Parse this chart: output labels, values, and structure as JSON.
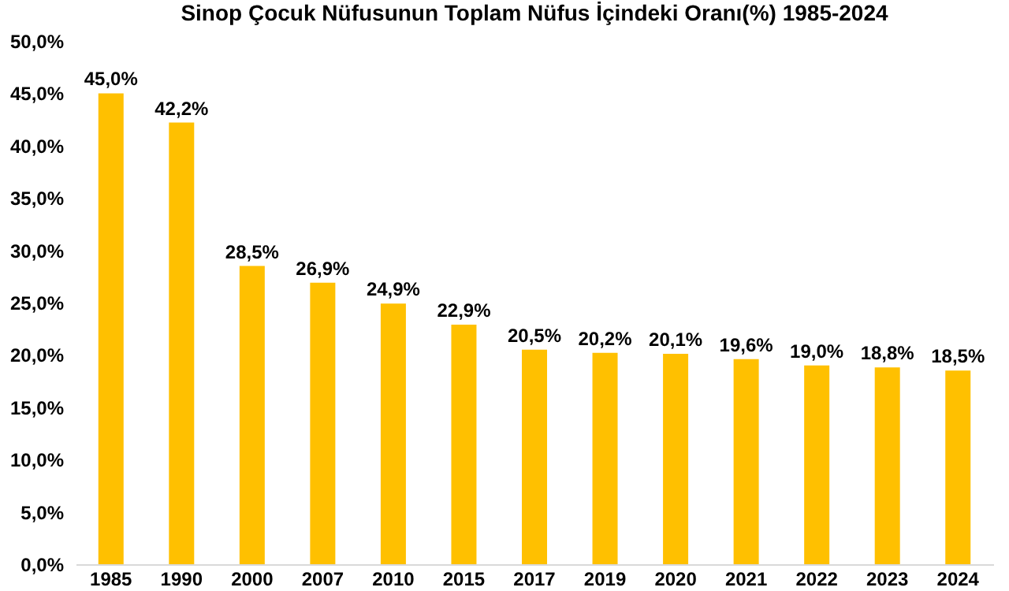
{
  "chart_data": {
    "type": "bar",
    "title": "Sinop Çocuk Nüfusunun Toplam Nüfus İçindeki Oranı(%) 1985-2024",
    "categories": [
      "1985",
      "1990",
      "2000",
      "2007",
      "2010",
      "2015",
      "2017",
      "2019",
      "2020",
      "2021",
      "2022",
      "2023",
      "2024"
    ],
    "values": [
      45.0,
      42.2,
      28.5,
      26.9,
      24.9,
      22.9,
      20.5,
      20.2,
      20.1,
      19.6,
      19.0,
      18.8,
      18.5
    ],
    "value_labels": [
      "45,0%",
      "42,2%",
      "28,5%",
      "26,9%",
      "24,9%",
      "22,9%",
      "20,5%",
      "20,2%",
      "20,1%",
      "19,6%",
      "19,0%",
      "18,8%",
      "18,5%"
    ],
    "color": "#ffc000",
    "ylim": [
      0,
      50
    ],
    "yticks": [
      {
        "value": 0,
        "label": "0,0%"
      },
      {
        "value": 5,
        "label": "5,0%"
      },
      {
        "value": 10,
        "label": "10,0%"
      },
      {
        "value": 15,
        "label": "15,0%"
      },
      {
        "value": 20,
        "label": "20,0%"
      },
      {
        "value": 25,
        "label": "25,0%"
      },
      {
        "value": 30,
        "label": "30,0%"
      },
      {
        "value": 35,
        "label": "35,0%"
      },
      {
        "value": 40,
        "label": "40,0%"
      },
      {
        "value": 45,
        "label": "45,0%"
      },
      {
        "value": 50,
        "label": "50,0%"
      }
    ],
    "grid": false
  }
}
